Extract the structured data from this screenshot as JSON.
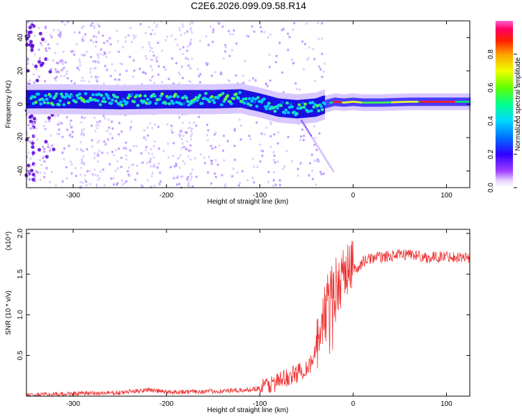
{
  "title": "C2E6.2026.099.09.58.R14",
  "chart_data": [
    {
      "type": "heatmap",
      "title": "C2E6.2026.099.09.58.R14",
      "xlabel": "Height of straight line (km)",
      "ylabel": "Frequency (Hz)",
      "xlim": [
        -350,
        125
      ],
      "ylim": [
        -50,
        50
      ],
      "xticks": [
        -300,
        -200,
        -100,
        0,
        100
      ],
      "yticks": [
        -40,
        -20,
        0,
        20,
        40
      ],
      "xtick_labels": [
        "-300",
        "-200",
        "-100",
        "0",
        "100"
      ],
      "ytick_labels": [
        "-40",
        "-20",
        "0",
        "20",
        "40"
      ],
      "colorbar": {
        "label": "Normalized spectral amplitude",
        "range": [
          0,
          1
        ],
        "ticks": [
          0.0,
          0.2,
          0.4,
          0.6,
          0.8
        ],
        "tick_labels": [
          "0.0",
          "0.2",
          "0.4",
          "0.6",
          "0.8"
        ],
        "colors": [
          "#ffffff",
          "#7a00ff",
          "#0000ff",
          "#00c8ff",
          "#00ff80",
          "#80ff00",
          "#ffff00",
          "#ff8000",
          "#ff0000",
          "#ff40c0"
        ]
      },
      "ridge": {
        "x": [
          -350,
          -300,
          -250,
          -200,
          -150,
          -120,
          -100,
          -80,
          -60,
          -40,
          -30,
          -20,
          -10,
          0,
          10,
          30,
          60,
          90,
          125
        ],
        "y": [
          3,
          3,
          2.5,
          3,
          3,
          3.5,
          1,
          -2,
          -3,
          -2,
          0,
          1.5,
          1,
          1.5,
          1,
          1,
          1.5,
          1.5,
          1.5
        ]
      }
    },
    {
      "type": "line",
      "xlabel": "Height of straight line (km)",
      "ylabel": "SNR (10 * v/v)",
      "multiplier_label": "(x10⁴)",
      "xlim": [
        -350,
        125
      ],
      "ylim": [
        0,
        2.05
      ],
      "xticks": [
        -300,
        -200,
        -100,
        0,
        100
      ],
      "yticks": [
        0.5,
        1.0,
        1.5,
        2.0
      ],
      "xtick_labels": [
        "-300",
        "-200",
        "-100",
        "0",
        "100"
      ],
      "ytick_labels": [
        "0.5",
        "1.0",
        "1.5",
        "2.0"
      ],
      "color": "#ee3333",
      "series": [
        {
          "name": "SNR",
          "x": [
            -350,
            -300,
            -250,
            -220,
            -200,
            -150,
            -120,
            -100,
            -80,
            -60,
            -45,
            -40,
            -35,
            -30,
            -25,
            -20,
            -15,
            -10,
            -5,
            0,
            5,
            10,
            20,
            40,
            60,
            80,
            100,
            125
          ],
          "y": [
            0.01,
            0.03,
            0.04,
            0.08,
            0.05,
            0.06,
            0.07,
            0.1,
            0.18,
            0.28,
            0.4,
            0.55,
            0.75,
            1.05,
            1.25,
            1.4,
            1.35,
            1.5,
            1.55,
            1.6,
            1.55,
            1.65,
            1.7,
            1.72,
            1.75,
            1.7,
            1.72,
            1.7
          ]
        }
      ]
    }
  ]
}
